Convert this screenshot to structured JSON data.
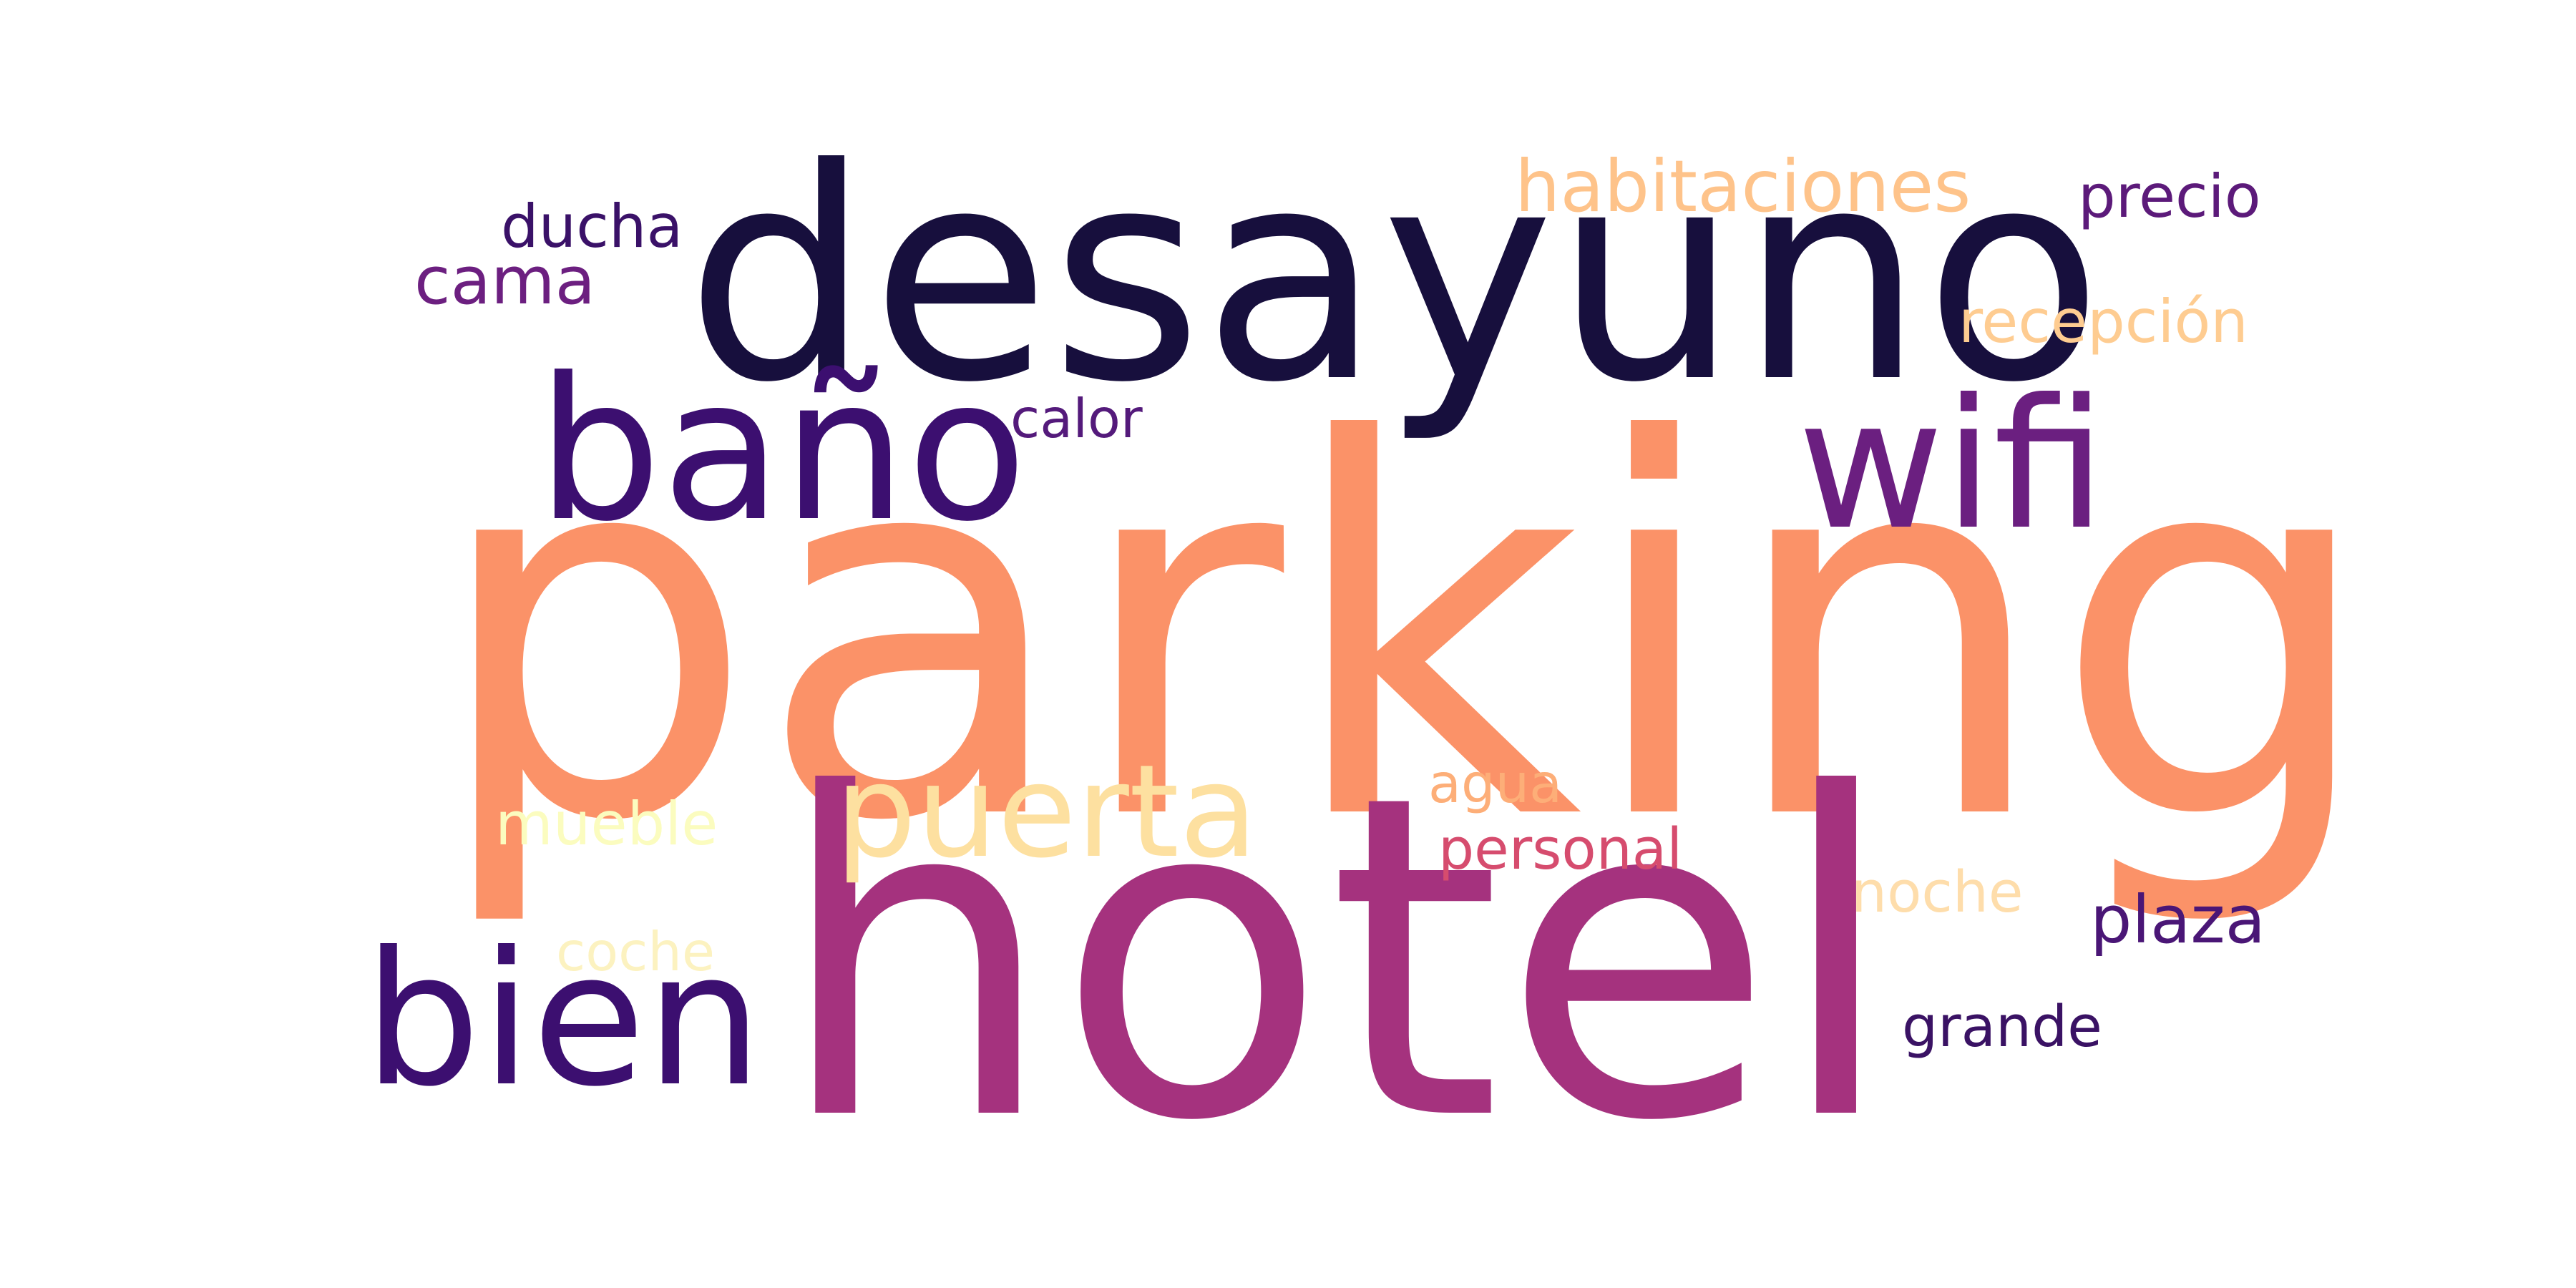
{
  "words": [
    {
      "id": "parking",
      "text": "parking",
      "color": "#fb9268"
    },
    {
      "id": "hotel",
      "text": "hotel",
      "color": "#a5327e"
    },
    {
      "id": "desayuno",
      "text": "desayuno",
      "color": "#170f3d"
    },
    {
      "id": "bano",
      "text": "baño",
      "color": "#3c0f70"
    },
    {
      "id": "wifi",
      "text": "wifi",
      "color": "#6b1f80"
    },
    {
      "id": "bien",
      "text": "bien",
      "color": "#3c0f70"
    },
    {
      "id": "puerta",
      "text": "puerta",
      "color": "#fde0a0"
    },
    {
      "id": "habitaciones",
      "text": "habitaciones",
      "color": "#fec38a"
    },
    {
      "id": "precio",
      "text": "precio",
      "color": "#5c1a7a"
    },
    {
      "id": "ducha",
      "text": "ducha",
      "color": "#3a1168"
    },
    {
      "id": "cama",
      "text": "cama",
      "color": "#6c1f80"
    },
    {
      "id": "recepcion",
      "text": "recepción",
      "color": "#fecc91"
    },
    {
      "id": "calor",
      "text": "calor",
      "color": "#541a7b"
    },
    {
      "id": "agua",
      "text": "agua",
      "color": "#fdae78"
    },
    {
      "id": "personal",
      "text": "personal",
      "color": "#d64c6e"
    },
    {
      "id": "mueble",
      "text": "mueble",
      "color": "#fbfcbf"
    },
    {
      "id": "noche",
      "text": "noche",
      "color": "#feddab"
    },
    {
      "id": "plaza",
      "text": "plaza",
      "color": "#4a1676"
    },
    {
      "id": "coche",
      "text": "coche",
      "color": "#fcf2c0"
    },
    {
      "id": "grande",
      "text": "grande",
      "color": "#3a1264"
    }
  ]
}
